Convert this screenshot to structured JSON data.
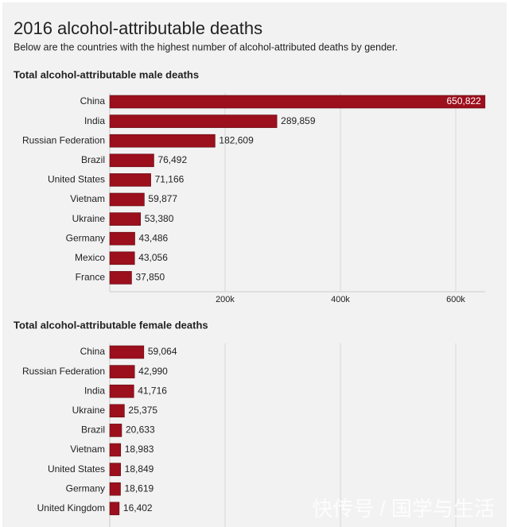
{
  "title": "2016 alcohol-attributable deaths",
  "subtitle": "Below are the countries with the highest number of alcohol-attributed deaths by gender.",
  "watermark": "快传号 / 国学与生活",
  "chart_data": [
    {
      "type": "bar",
      "orientation": "horizontal",
      "title": "Total alcohol-attributable male deaths",
      "color": "#9c0f1c",
      "categories": [
        "China",
        "India",
        "Russian Federation",
        "Brazil",
        "United States",
        "Vietnam",
        "Ukraine",
        "Germany",
        "Mexico",
        "France"
      ],
      "values": [
        650822,
        289859,
        182609,
        76492,
        71166,
        59877,
        53380,
        43486,
        43056,
        37850
      ],
      "value_labels": [
        "650,822",
        "289,859",
        "182,609",
        "76,492",
        "71,166",
        "59,877",
        "53,380",
        "43,486",
        "43,056",
        "37,850"
      ],
      "xlim": [
        0,
        651000
      ],
      "xticks": [
        {
          "value": 200000,
          "label": "200k"
        },
        {
          "value": 400000,
          "label": "400k"
        },
        {
          "value": 600000,
          "label": "600k"
        }
      ],
      "grid": true
    },
    {
      "type": "bar",
      "orientation": "horizontal",
      "title": "Total alcohol-attributable female deaths",
      "color": "#9c0f1c",
      "categories": [
        "China",
        "Russian Federation",
        "India",
        "Ukraine",
        "Brazil",
        "Vietnam",
        "United States",
        "Germany",
        "United Kingdom"
      ],
      "values": [
        59064,
        42990,
        41716,
        25375,
        20633,
        18983,
        18849,
        18619,
        16402
      ],
      "value_labels": [
        "59,064",
        "42,990",
        "41,716",
        "25,375",
        "20,633",
        "18,983",
        "18,849",
        "18,619",
        "16,402"
      ],
      "xlim": [
        0,
        651000
      ],
      "xticks": [
        200000,
        400000,
        600000
      ],
      "grid": true
    }
  ]
}
